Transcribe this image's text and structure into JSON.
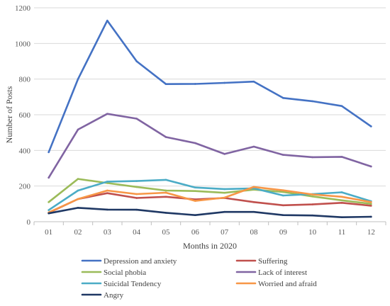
{
  "chart_data": {
    "type": "line",
    "title": "",
    "xlabel": "Months in 2020",
    "ylabel": "Number of Posts",
    "categories": [
      "01",
      "02",
      "03",
      "04",
      "05",
      "06",
      "07",
      "08",
      "09",
      "10",
      "11",
      "12"
    ],
    "yticks": [
      "0",
      "200",
      "400",
      "600",
      "800",
      "1000",
      "1200"
    ],
    "ylim": [
      0,
      1200
    ],
    "grid": "horizontal",
    "legend_position": "bottom",
    "series": [
      {
        "name": "Depression and anxiety",
        "color": "#4472C4",
        "values": [
          390,
          800,
          1128,
          900,
          772,
          773,
          779,
          786,
          694,
          676,
          649,
          535
        ]
      },
      {
        "name": "Suffering",
        "color": "#C0504D",
        "values": [
          50,
          127,
          160,
          133,
          140,
          125,
          133,
          110,
          92,
          97,
          106,
          90
        ]
      },
      {
        "name": "Social phobia",
        "color": "#9BBB59",
        "values": [
          110,
          240,
          217,
          195,
          175,
          172,
          162,
          180,
          167,
          142,
          120,
          100
        ]
      },
      {
        "name": "Lack of interest",
        "color": "#8064A2",
        "values": [
          247,
          517,
          605,
          578,
          475,
          441,
          380,
          421,
          375,
          362,
          364,
          310
        ]
      },
      {
        "name": "Suicidal Tendency",
        "color": "#4BACC6",
        "values": [
          65,
          175,
          225,
          228,
          235,
          192,
          183,
          187,
          147,
          155,
          165,
          115
        ]
      },
      {
        "name": "Worried and afraid",
        "color": "#F79646",
        "values": [
          52,
          127,
          175,
          155,
          163,
          117,
          135,
          195,
          176,
          153,
          140,
          110
        ]
      },
      {
        "name": "Angry",
        "color": "#1F3864",
        "values": [
          47,
          78,
          68,
          67,
          50,
          37,
          55,
          55,
          37,
          35,
          25,
          28
        ]
      }
    ]
  }
}
